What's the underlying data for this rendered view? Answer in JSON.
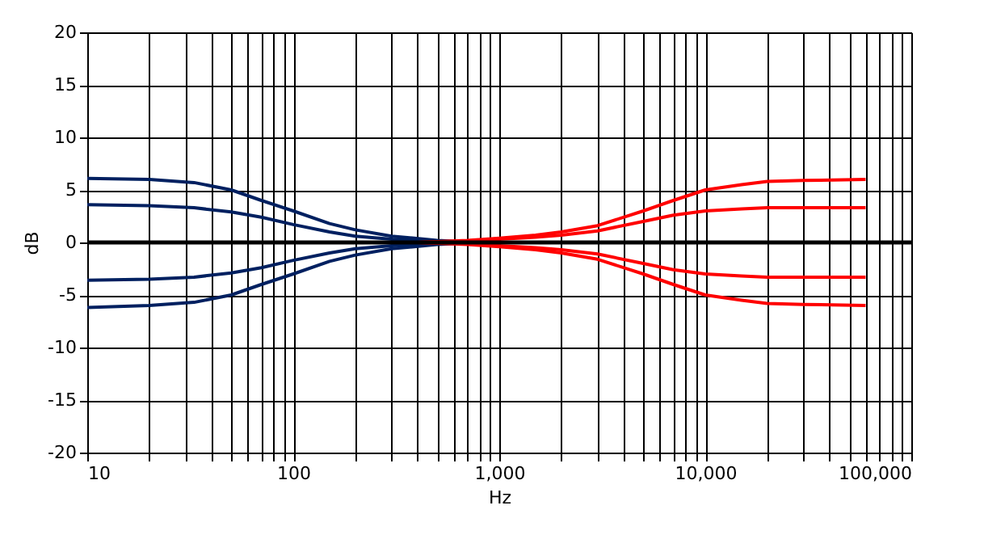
{
  "chart_data": {
    "type": "line",
    "xlabel": "Hz",
    "ylabel": "dB",
    "log": "x",
    "grid": true,
    "legend": false,
    "marker": "none",
    "line_style": "solid",
    "xlim": [
      10,
      100000
    ],
    "ylim": [
      -20,
      20
    ],
    "xticks": [
      {
        "value": 10,
        "label": "10"
      },
      {
        "value": 20,
        "label": null
      },
      {
        "value": 30,
        "label": null
      },
      {
        "value": 40,
        "label": null
      },
      {
        "value": 50,
        "label": null
      },
      {
        "value": 60,
        "label": null
      },
      {
        "value": 70,
        "label": null
      },
      {
        "value": 80,
        "label": null
      },
      {
        "value": 90,
        "label": null
      },
      {
        "value": 100,
        "label": "100"
      },
      {
        "value": 200,
        "label": null
      },
      {
        "value": 300,
        "label": null
      },
      {
        "value": 400,
        "label": null
      },
      {
        "value": 500,
        "label": null
      },
      {
        "value": 600,
        "label": null
      },
      {
        "value": 700,
        "label": null
      },
      {
        "value": 800,
        "label": null
      },
      {
        "value": 900,
        "label": null
      },
      {
        "value": 1000,
        "label": "1,000"
      },
      {
        "value": 2000,
        "label": null
      },
      {
        "value": 3000,
        "label": null
      },
      {
        "value": 4000,
        "label": null
      },
      {
        "value": 5000,
        "label": null
      },
      {
        "value": 6000,
        "label": null
      },
      {
        "value": 7000,
        "label": null
      },
      {
        "value": 8000,
        "label": null
      },
      {
        "value": 9000,
        "label": null
      },
      {
        "value": 10000,
        "label": "10,000"
      },
      {
        "value": 20000,
        "label": null
      },
      {
        "value": 30000,
        "label": null
      },
      {
        "value": 40000,
        "label": null
      },
      {
        "value": 50000,
        "label": null
      },
      {
        "value": 60000,
        "label": null
      },
      {
        "value": 70000,
        "label": null
      },
      {
        "value": 80000,
        "label": null
      },
      {
        "value": 90000,
        "label": null
      },
      {
        "value": 100000,
        "label": "100,000"
      }
    ],
    "yticks": [
      -20,
      -15,
      -10,
      -5,
      0,
      5,
      10,
      15,
      20
    ],
    "ref_lines": [
      {
        "axis": "y",
        "value": 0,
        "label": null,
        "color": "#000000"
      }
    ],
    "series": [
      {
        "color": "#002060",
        "x": [
          10,
          20,
          33,
          50,
          70,
          100,
          150,
          200,
          300,
          500,
          800
        ],
        "values": [
          6.1,
          6.0,
          5.7,
          5.0,
          4.0,
          3.0,
          1.8,
          1.2,
          0.6,
          0.2,
          0
        ]
      },
      {
        "color": "#002060",
        "x": [
          10,
          20,
          33,
          50,
          70,
          100,
          150,
          200,
          300,
          500,
          800
        ],
        "values": [
          3.6,
          3.5,
          3.3,
          2.9,
          2.4,
          1.7,
          1.0,
          0.6,
          0.3,
          0.1,
          0
        ]
      },
      {
        "color": "#002060",
        "x": [
          10,
          20,
          33,
          50,
          70,
          100,
          150,
          200,
          300,
          500,
          800
        ],
        "values": [
          -3.6,
          -3.5,
          -3.3,
          -2.9,
          -2.4,
          -1.7,
          -1.0,
          -0.6,
          -0.3,
          -0.1,
          0
        ]
      },
      {
        "color": "#002060",
        "x": [
          10,
          20,
          33,
          50,
          70,
          100,
          150,
          200,
          300,
          500,
          800
        ],
        "values": [
          -6.2,
          -6.0,
          -5.7,
          -5.0,
          -4.0,
          -3.0,
          -1.8,
          -1.2,
          -0.6,
          -0.2,
          0
        ]
      },
      {
        "color": "#ff0000",
        "x": [
          400,
          700,
          1000,
          1500,
          2000,
          3000,
          5000,
          7000,
          10000,
          15000,
          20000,
          30000,
          60000
        ],
        "values": [
          0,
          0.2,
          0.4,
          0.7,
          1.0,
          1.6,
          3.0,
          4.0,
          5.0,
          5.5,
          5.8,
          5.9,
          6.0
        ]
      },
      {
        "color": "#ff0000",
        "x": [
          400,
          700,
          1000,
          1500,
          2000,
          3000,
          5000,
          7000,
          10000,
          15000,
          20000,
          30000,
          60000
        ],
        "values": [
          0,
          0.1,
          0.3,
          0.5,
          0.7,
          1.1,
          2.0,
          2.6,
          3.0,
          3.2,
          3.3,
          3.3,
          3.3
        ]
      },
      {
        "color": "#ff0000",
        "x": [
          400,
          700,
          1000,
          1500,
          2000,
          3000,
          5000,
          7000,
          10000,
          15000,
          20000,
          30000,
          60000
        ],
        "values": [
          0,
          -0.1,
          -0.3,
          -0.5,
          -0.7,
          -1.1,
          -2.0,
          -2.6,
          -3.0,
          -3.2,
          -3.3,
          -3.3,
          -3.3
        ]
      },
      {
        "color": "#ff0000",
        "x": [
          400,
          700,
          1000,
          1500,
          2000,
          3000,
          5000,
          7000,
          10000,
          15000,
          20000,
          30000,
          60000
        ],
        "values": [
          0,
          -0.2,
          -0.4,
          -0.7,
          -1.0,
          -1.6,
          -3.0,
          -4.0,
          -5.0,
          -5.5,
          -5.8,
          -5.9,
          -6.0
        ]
      }
    ]
  }
}
